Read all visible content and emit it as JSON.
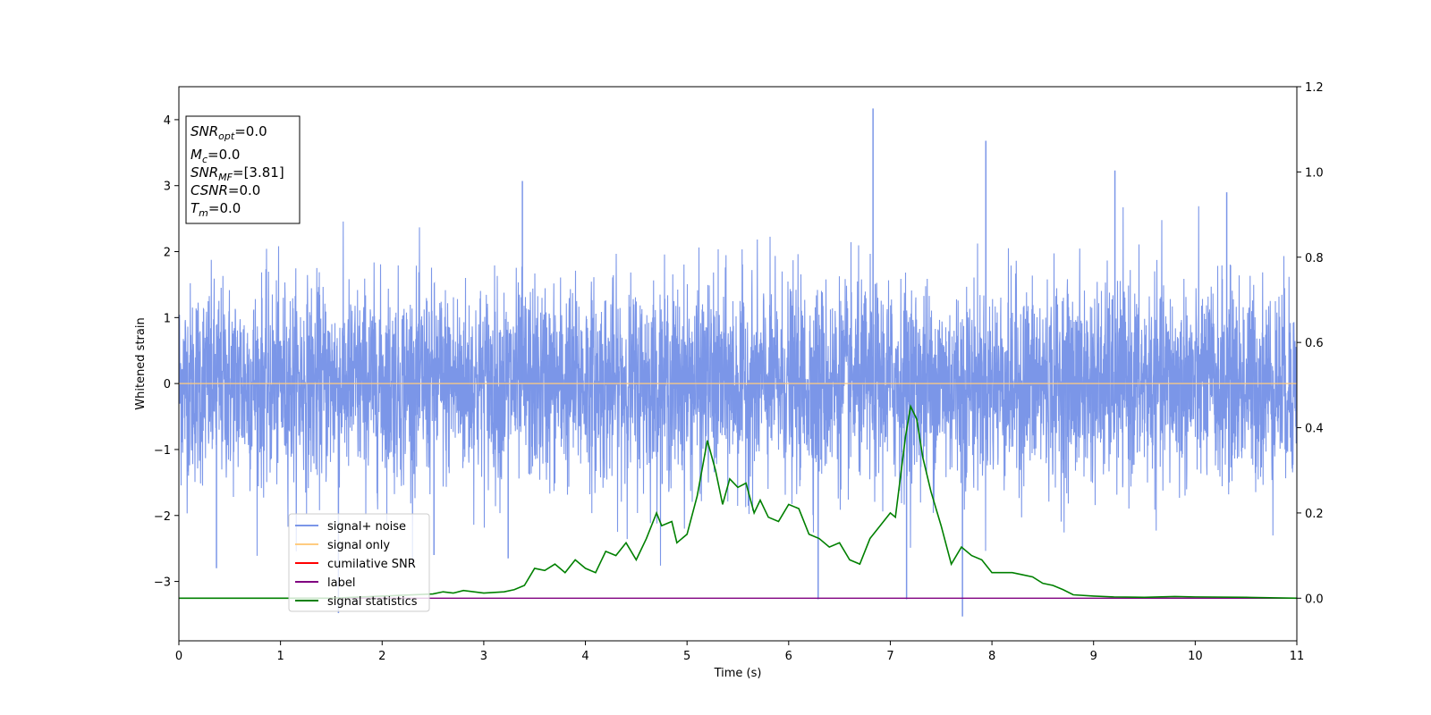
{
  "chart_data": {
    "type": "line",
    "xlabel": "Time (s)",
    "ylabel": "Whitened strain",
    "xlim": [
      0,
      11
    ],
    "ylim_left": [
      -3.9,
      4.5
    ],
    "ylim_right": [
      -0.1,
      1.2
    ],
    "x_ticks": [
      0,
      1,
      2,
      3,
      4,
      5,
      6,
      7,
      8,
      9,
      10,
      11
    ],
    "x_tick_labels": [
      "0",
      "1",
      "2",
      "3",
      "4",
      "5",
      "6",
      "7",
      "8",
      "9",
      "10",
      "11"
    ],
    "y_ticks_left": [
      -3,
      -2,
      -1,
      0,
      1,
      2,
      3,
      4
    ],
    "y_tick_labels_left": [
      "−3",
      "−2",
      "−1",
      "0",
      "1",
      "2",
      "3",
      "4"
    ],
    "y_ticks_right": [
      0.0,
      0.2,
      0.4,
      0.6,
      0.8,
      1.0,
      1.2
    ],
    "y_tick_labels_right": [
      "0.0",
      "0.2",
      "0.4",
      "0.6",
      "0.8",
      "1.0",
      "1.2"
    ],
    "annotation_box": [
      {
        "base": "SNR",
        "sub": "opt",
        "rest": "=0.0"
      },
      {
        "base": "M",
        "sub": "c",
        "rest": "=0.0"
      },
      {
        "base": "SNR",
        "sub": "MF",
        "rest": "=[3.81]"
      },
      {
        "base": "CSNR",
        "sub": "",
        "rest": "=0.0"
      },
      {
        "base": "T",
        "sub": "m",
        "rest": "=0.0"
      }
    ],
    "legend_position": "lower-left",
    "legend": [
      {
        "label": "signal+ noise",
        "color": "#7b96e8"
      },
      {
        "label": "signal only",
        "color": "#ffcc80"
      },
      {
        "label": "cumilative SNR",
        "color": "#ff0000"
      },
      {
        "label": "label",
        "color": "#800080"
      },
      {
        "label": "signal statistics",
        "color": "#008000"
      }
    ],
    "series": [
      {
        "name": "signal+ noise",
        "axis": "left",
        "color": "#7b96e8",
        "description_of_values": "whitened strain noise, envelope approx ±2.4 over full 0–11 s range",
        "envelope": {
          "typical_max": 2.4,
          "typical_min": -2.4
        },
        "spikes": [
          {
            "x": 6.83,
            "y": 4.17
          },
          {
            "x": 7.94,
            "y": 3.68
          },
          {
            "x": 9.21,
            "y": 3.23
          },
          {
            "x": 3.38,
            "y": 3.07
          },
          {
            "x": 10.31,
            "y": 2.9
          },
          {
            "x": 6.29,
            "y": -3.27
          },
          {
            "x": 7.16,
            "y": -3.27
          },
          {
            "x": 7.71,
            "y": -3.53
          },
          {
            "x": 1.57,
            "y": -3.48
          },
          {
            "x": 2.51,
            "y": -2.6
          },
          {
            "x": 3.24,
            "y": -2.65
          },
          {
            "x": 0.37,
            "y": -2.8
          }
        ]
      },
      {
        "name": "signal only",
        "axis": "left",
        "color": "#ffcc80",
        "x": [
          0,
          11
        ],
        "y": [
          0,
          0
        ]
      },
      {
        "name": "label",
        "axis": "right",
        "color": "#800080",
        "x": [
          0,
          11
        ],
        "y": [
          0,
          0
        ]
      },
      {
        "name": "signal statistics",
        "axis": "right",
        "color": "#008000",
        "x": [
          0,
          0.5,
          1.0,
          1.5,
          2.0,
          2.5,
          2.6,
          2.7,
          2.8,
          3.0,
          3.2,
          3.3,
          3.4,
          3.5,
          3.6,
          3.7,
          3.8,
          3.9,
          4.0,
          4.1,
          4.2,
          4.3,
          4.4,
          4.5,
          4.6,
          4.7,
          4.75,
          4.85,
          4.9,
          5.0,
          5.1,
          5.2,
          5.28,
          5.35,
          5.42,
          5.5,
          5.58,
          5.66,
          5.72,
          5.8,
          5.9,
          6.0,
          6.1,
          6.2,
          6.3,
          6.4,
          6.5,
          6.6,
          6.7,
          6.8,
          6.9,
          7.0,
          7.05,
          7.15,
          7.2,
          7.26,
          7.32,
          7.4,
          7.5,
          7.6,
          7.7,
          7.8,
          7.9,
          8.0,
          8.1,
          8.2,
          8.3,
          8.4,
          8.5,
          8.6,
          8.7,
          8.8,
          9.0,
          9.2,
          9.5,
          9.8,
          10.0,
          10.5,
          11.0
        ],
        "y": [
          0.0,
          0.0,
          0.0,
          0.0,
          0.005,
          0.01,
          0.015,
          0.012,
          0.018,
          0.012,
          0.015,
          0.02,
          0.03,
          0.07,
          0.065,
          0.08,
          0.06,
          0.09,
          0.07,
          0.06,
          0.11,
          0.1,
          0.13,
          0.09,
          0.14,
          0.2,
          0.17,
          0.18,
          0.13,
          0.15,
          0.24,
          0.37,
          0.3,
          0.22,
          0.28,
          0.26,
          0.27,
          0.2,
          0.23,
          0.19,
          0.18,
          0.22,
          0.21,
          0.15,
          0.14,
          0.12,
          0.13,
          0.09,
          0.08,
          0.14,
          0.17,
          0.2,
          0.19,
          0.38,
          0.45,
          0.42,
          0.33,
          0.25,
          0.17,
          0.08,
          0.12,
          0.1,
          0.09,
          0.06,
          0.06,
          0.06,
          0.055,
          0.05,
          0.035,
          0.03,
          0.02,
          0.008,
          0.005,
          0.003,
          0.002,
          0.004,
          0.003,
          0.002,
          0.0
        ]
      }
    ]
  }
}
